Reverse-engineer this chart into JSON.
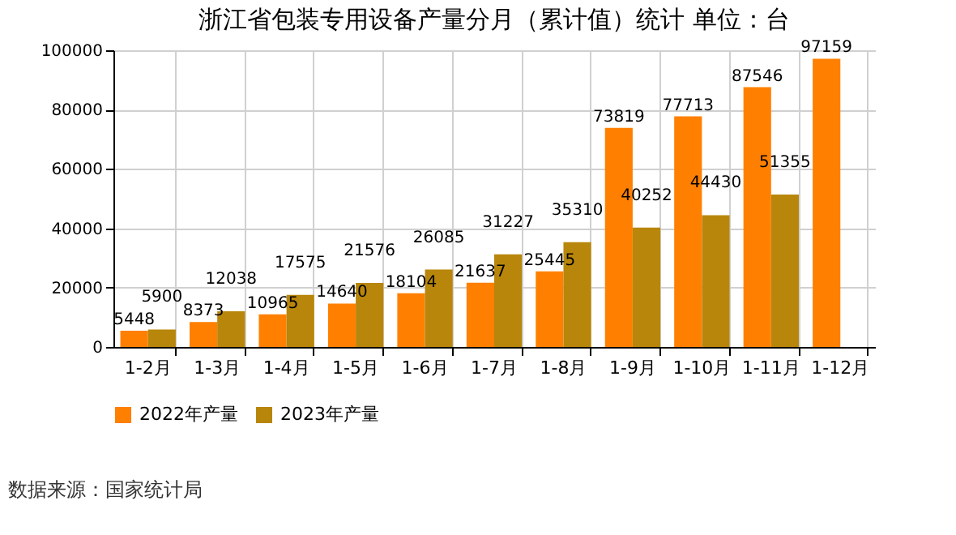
{
  "chart_data": {
    "type": "bar",
    "title": "浙江省包装专用设备产量分月（累计值）统计 单位：台",
    "categories": [
      "1-2月",
      "1-3月",
      "1-4月",
      "1-5月",
      "1-6月",
      "1-7月",
      "1-8月",
      "1-9月",
      "1-10月",
      "1-11月",
      "1-12月"
    ],
    "series": [
      {
        "name": "2022年产量",
        "color": "#ff8000",
        "values": [
          5448,
          8373,
          10965,
          14640,
          18104,
          21637,
          25445,
          73819,
          77713,
          87546,
          97159
        ]
      },
      {
        "name": "2023年产量",
        "color": "#b8860b",
        "values": [
          5900,
          12038,
          17575,
          21576,
          26085,
          31227,
          35310,
          40252,
          44430,
          51355,
          null
        ]
      }
    ],
    "ylim": [
      0,
      100000
    ],
    "yticks": [
      0,
      20000,
      40000,
      60000,
      80000,
      100000
    ],
    "grid": true,
    "legend": "bottom",
    "data_labels": true,
    "annotations": [
      "数据来源：国家统计局"
    ]
  }
}
